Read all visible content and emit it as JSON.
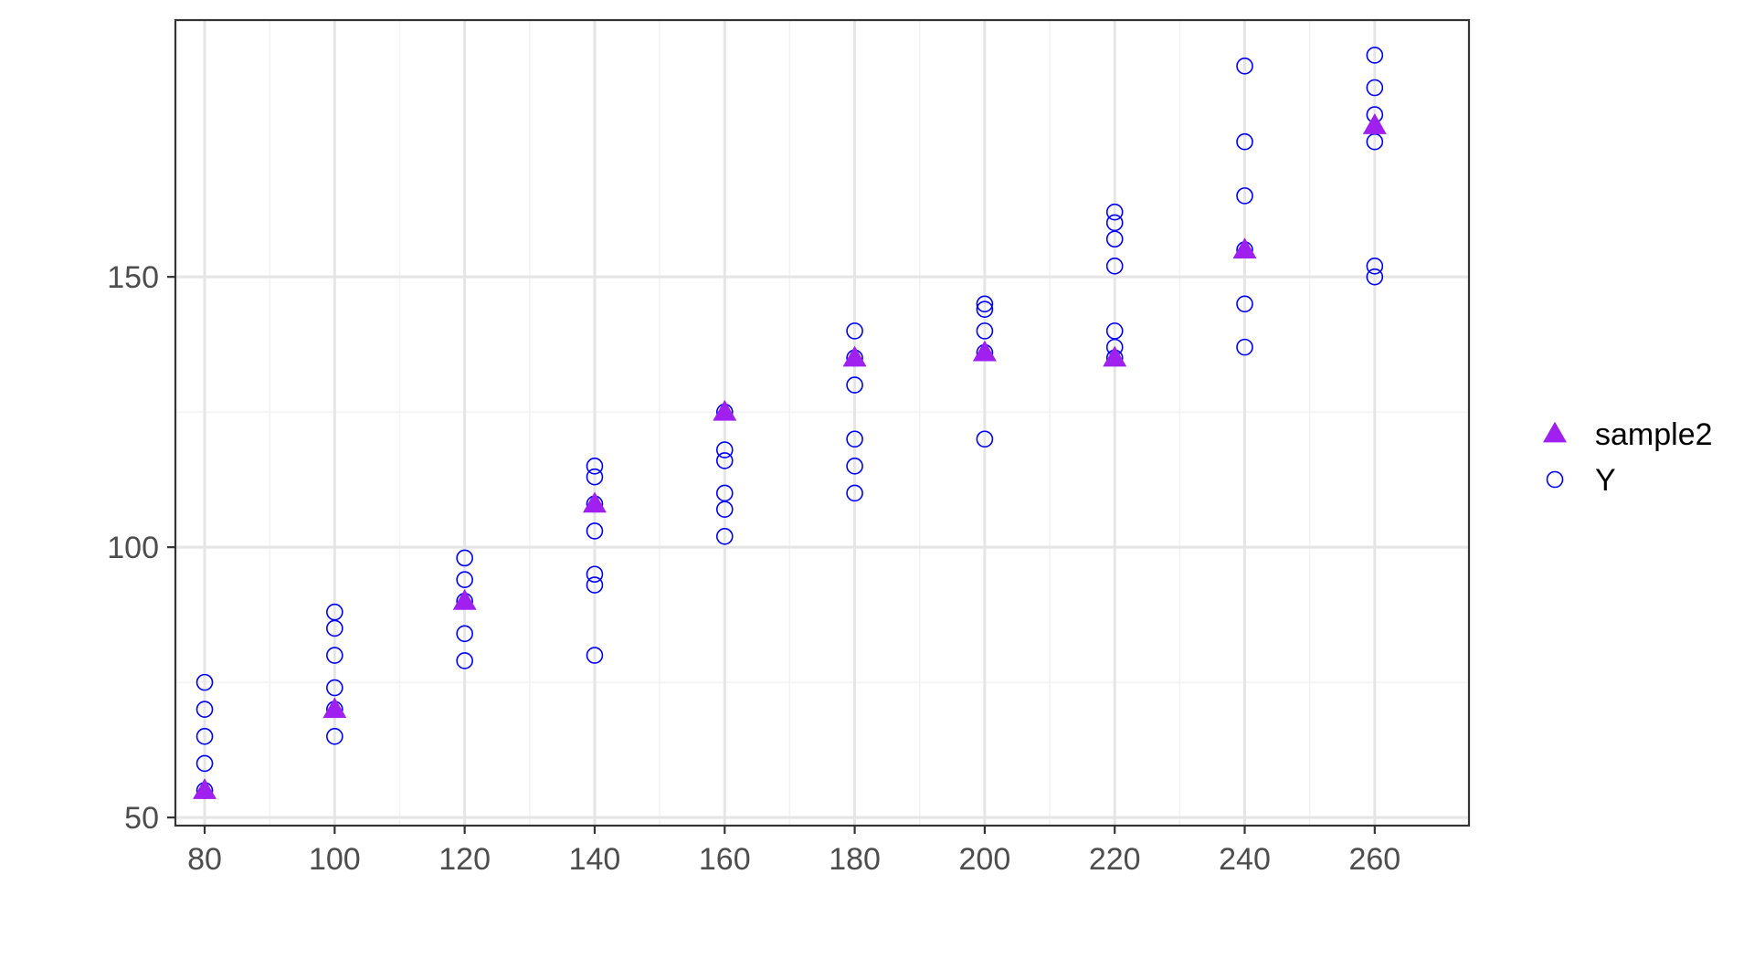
{
  "colors": {
    "sample2": "#a020f0",
    "Y": "#0000ff",
    "grid_major": "#e5e5e5",
    "grid_minor": "#f2f2f2",
    "panel_border": "#333333",
    "tick_text": "#4d4d4d"
  },
  "legend": {
    "items": [
      {
        "label": "sample2",
        "shape": "filled-triangle",
        "color": "#a020f0"
      },
      {
        "label": "Y",
        "shape": "open-circle",
        "color": "#0000ff"
      }
    ]
  },
  "chart_data": {
    "type": "scatter",
    "title": "",
    "xlabel": "",
    "ylabel": "",
    "xlim": [
      75.5,
      274.5
    ],
    "ylim": [
      48.5,
      197.5
    ],
    "x_ticks": [
      80,
      100,
      120,
      140,
      160,
      180,
      200,
      220,
      240,
      260
    ],
    "y_ticks": [
      50,
      100,
      150
    ],
    "grid": true,
    "legend_position": "right",
    "series": [
      {
        "name": "Y",
        "marker": "open-circle",
        "color": "#0000ff",
        "points": [
          [
            80,
            55
          ],
          [
            80,
            60
          ],
          [
            80,
            65
          ],
          [
            80,
            70
          ],
          [
            80,
            75
          ],
          [
            100,
            65
          ],
          [
            100,
            70
          ],
          [
            100,
            74
          ],
          [
            100,
            80
          ],
          [
            100,
            85
          ],
          [
            100,
            88
          ],
          [
            120,
            79
          ],
          [
            120,
            84
          ],
          [
            120,
            90
          ],
          [
            120,
            94
          ],
          [
            120,
            98
          ],
          [
            140,
            80
          ],
          [
            140,
            93
          ],
          [
            140,
            95
          ],
          [
            140,
            103
          ],
          [
            140,
            108
          ],
          [
            140,
            113
          ],
          [
            140,
            115
          ],
          [
            160,
            102
          ],
          [
            160,
            107
          ],
          [
            160,
            110
          ],
          [
            160,
            116
          ],
          [
            160,
            118
          ],
          [
            160,
            125
          ],
          [
            180,
            110
          ],
          [
            180,
            115
          ],
          [
            180,
            120
          ],
          [
            180,
            130
          ],
          [
            180,
            135
          ],
          [
            180,
            140
          ],
          [
            200,
            120
          ],
          [
            200,
            136
          ],
          [
            200,
            140
          ],
          [
            200,
            144
          ],
          [
            200,
            145
          ],
          [
            220,
            135
          ],
          [
            220,
            137
          ],
          [
            220,
            140
          ],
          [
            220,
            152
          ],
          [
            220,
            157
          ],
          [
            220,
            160
          ],
          [
            220,
            162
          ],
          [
            240,
            137
          ],
          [
            240,
            145
          ],
          [
            240,
            155
          ],
          [
            240,
            165
          ],
          [
            240,
            175
          ],
          [
            240,
            189
          ],
          [
            260,
            150
          ],
          [
            260,
            152
          ],
          [
            260,
            175
          ],
          [
            260,
            180
          ],
          [
            260,
            185
          ],
          [
            260,
            191
          ]
        ]
      },
      {
        "name": "sample2",
        "marker": "filled-triangle",
        "color": "#a020f0",
        "points": [
          [
            80,
            55
          ],
          [
            100,
            70
          ],
          [
            120,
            90
          ],
          [
            140,
            108
          ],
          [
            160,
            125
          ],
          [
            180,
            135
          ],
          [
            200,
            136
          ],
          [
            220,
            135
          ],
          [
            240,
            155
          ],
          [
            260,
            178
          ]
        ]
      }
    ]
  }
}
